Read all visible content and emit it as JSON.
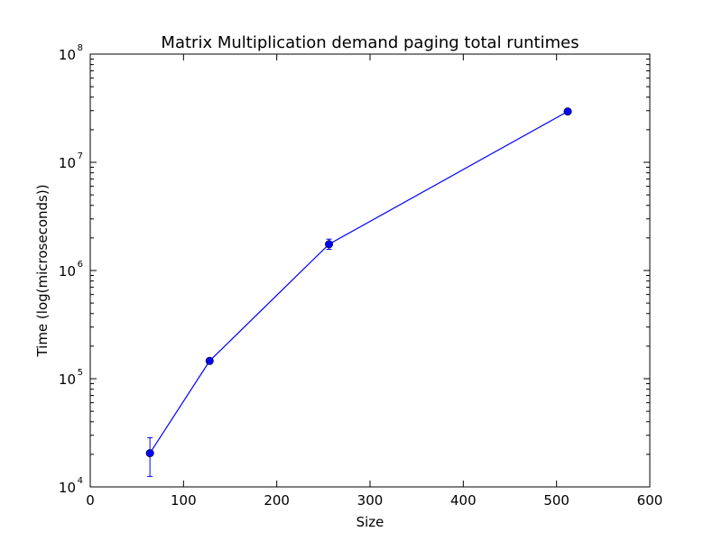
{
  "chart_data": {
    "type": "line",
    "title": "Matrix Multiplication demand paging total runtimes",
    "xlabel": "Size",
    "ylabel": "Time (log(microseconds))",
    "xlim": [
      0,
      600
    ],
    "ylim": [
      10000,
      100000000
    ],
    "yscale": "log",
    "grid": false,
    "x_ticks": [
      {
        "value": 0,
        "label": "0"
      },
      {
        "value": 100,
        "label": "100"
      },
      {
        "value": 200,
        "label": "200"
      },
      {
        "value": 300,
        "label": "300"
      },
      {
        "value": 400,
        "label": "400"
      },
      {
        "value": 500,
        "label": "500"
      },
      {
        "value": 600,
        "label": "600"
      }
    ],
    "y_ticks": [
      {
        "value": 10000,
        "base": "10",
        "exp": "4"
      },
      {
        "value": 100000,
        "base": "10",
        "exp": "5"
      },
      {
        "value": 1000000,
        "base": "10",
        "exp": "6"
      },
      {
        "value": 10000000,
        "base": "10",
        "exp": "7"
      },
      {
        "value": 100000000,
        "base": "10",
        "exp": "8"
      }
    ],
    "series": [
      {
        "color": "#0000ff",
        "x": [
          64,
          128,
          256,
          512
        ],
        "y": [
          20500,
          146000,
          1750000,
          29500000
        ],
        "y_err_low": [
          12500,
          140000,
          1570000,
          29000000
        ],
        "y_err_high": [
          28500,
          152000,
          1950000,
          30000000
        ]
      }
    ]
  }
}
